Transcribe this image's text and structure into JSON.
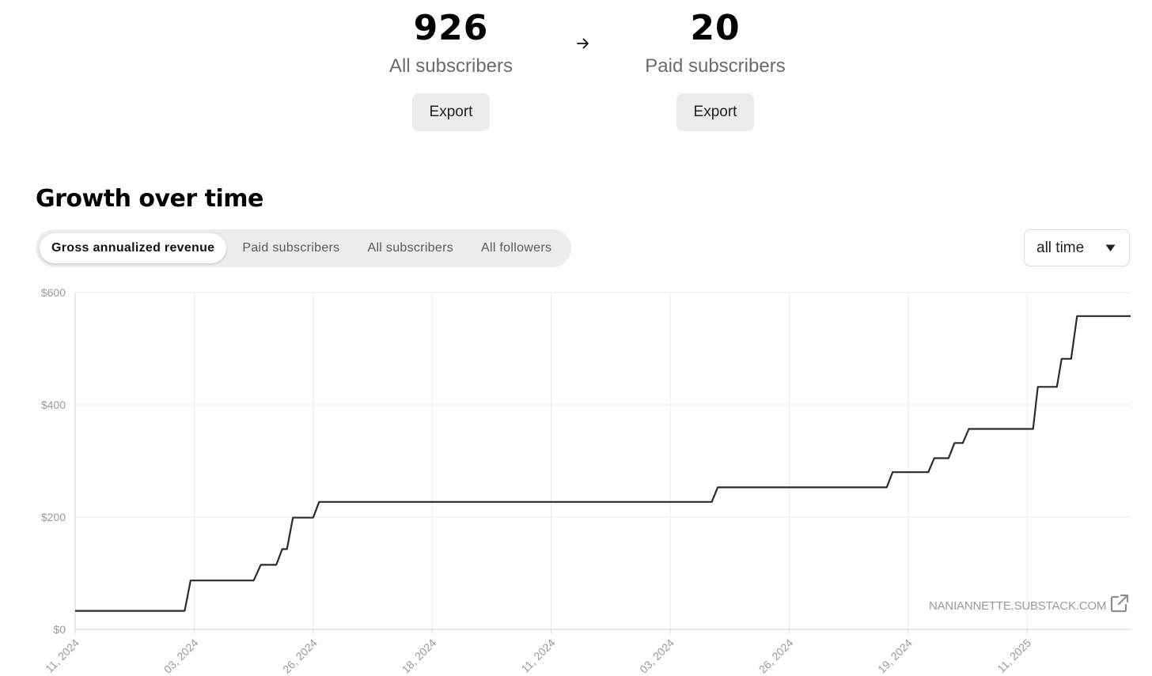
{
  "stats": [
    {
      "value": "926",
      "label": "All subscribers",
      "export_label": "Export"
    },
    {
      "value": "20",
      "label": "Paid subscribers",
      "export_label": "Export"
    }
  ],
  "section_title": "Growth over time",
  "tabs": [
    {
      "label": "Gross annualized revenue",
      "active": true
    },
    {
      "label": "Paid subscribers",
      "active": false
    },
    {
      "label": "All subscribers",
      "active": false
    },
    {
      "label": "All followers",
      "active": false
    }
  ],
  "range_select": {
    "value": "all time",
    "icon": "caret-down-icon"
  },
  "watermark": {
    "text": "NANIANNETTE.SUBSTACK.COM",
    "icon": "external-link-icon"
  },
  "colors": {
    "line": "#2b2b2b",
    "grid": "#ebebeb",
    "axis": "#d4d4d4",
    "tick_text": "#999999",
    "tab_track": "#ececec"
  },
  "chart_data": {
    "type": "line",
    "title": "",
    "xlabel": "",
    "ylabel": "",
    "ylim": [
      0,
      600
    ],
    "y_ticks": [
      0,
      200,
      400,
      600
    ],
    "y_tick_labels": [
      "$0",
      "$200",
      "$400",
      "$600"
    ],
    "x_tick_labels": [
      "11, 2024",
      "03, 2024",
      "26, 2024",
      "18, 2024",
      "11, 2024",
      "03, 2024",
      "26, 2024",
      "19, 2024",
      "11, 2025"
    ],
    "x_tick_positions": [
      0,
      1,
      2,
      3,
      4,
      5,
      6,
      7,
      8
    ],
    "xlim": [
      0,
      8.87
    ],
    "grid": true,
    "legend": "none",
    "series": [
      {
        "points": [
          [
            0,
            33
          ],
          [
            0.92,
            33
          ],
          [
            0.97,
            87
          ],
          [
            1.5,
            87
          ],
          [
            1.56,
            115
          ],
          [
            1.69,
            115
          ],
          [
            1.74,
            143
          ],
          [
            1.78,
            143
          ],
          [
            1.83,
            199
          ],
          [
            2.0,
            199
          ],
          [
            2.05,
            227
          ],
          [
            5.35,
            227
          ],
          [
            5.4,
            253
          ],
          [
            6.82,
            253
          ],
          [
            6.87,
            280
          ],
          [
            7.17,
            280
          ],
          [
            7.22,
            305
          ],
          [
            7.34,
            305
          ],
          [
            7.39,
            332
          ],
          [
            7.46,
            332
          ],
          [
            7.51,
            357
          ],
          [
            8.05,
            357
          ],
          [
            8.09,
            432
          ],
          [
            8.25,
            432
          ],
          [
            8.29,
            482
          ],
          [
            8.37,
            482
          ],
          [
            8.42,
            558
          ],
          [
            8.87,
            558
          ]
        ]
      }
    ]
  }
}
